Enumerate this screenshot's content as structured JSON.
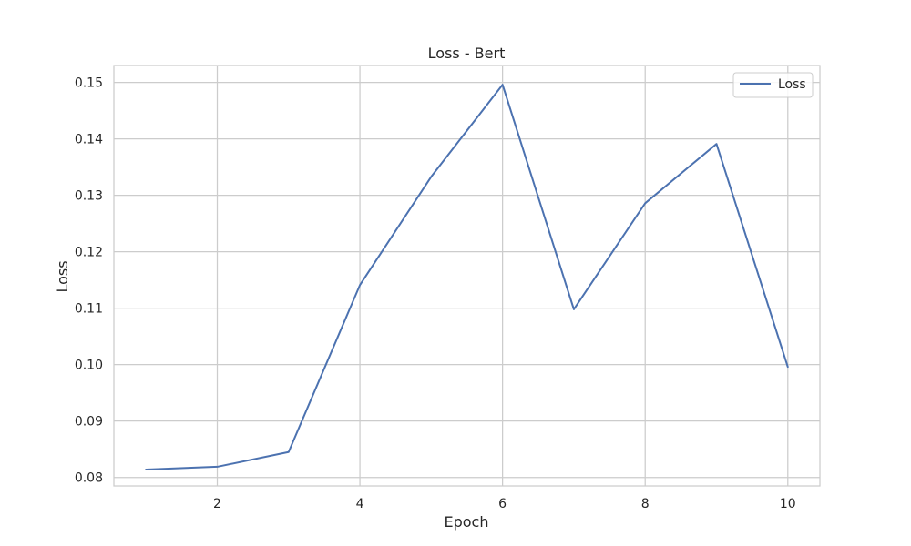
{
  "chart_data": {
    "type": "line",
    "title": "Loss - Bert",
    "xlabel": "Epoch",
    "ylabel": "Loss",
    "x": [
      1,
      2,
      3,
      4,
      5,
      6,
      7,
      8,
      9,
      10
    ],
    "series": [
      {
        "name": "Loss",
        "values": [
          0.0814,
          0.0819,
          0.0845,
          0.1141,
          0.1333,
          0.1496,
          0.1098,
          0.1286,
          0.1391,
          0.0996
        ],
        "color": "#4c72b0"
      }
    ],
    "xlim": [
      0.55,
      10.45
    ],
    "ylim": [
      0.0785,
      0.153
    ],
    "xticks": [
      2,
      4,
      6,
      8,
      10
    ],
    "xtick_labels": [
      "2",
      "4",
      "6",
      "8",
      "10"
    ],
    "yticks": [
      0.08,
      0.09,
      0.1,
      0.11,
      0.12,
      0.13,
      0.14,
      0.15
    ],
    "ytick_labels": [
      "0.08",
      "0.09",
      "0.10",
      "0.11",
      "0.12",
      "0.13",
      "0.14",
      "0.15"
    ],
    "grid": true,
    "legend": "top-right",
    "grid_color": "#cccccc",
    "frame_color": "#cccccc"
  }
}
